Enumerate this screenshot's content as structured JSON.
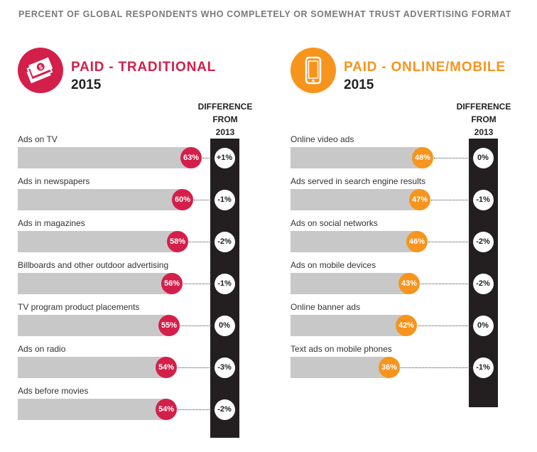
{
  "title": "PERCENT OF GLOBAL RESPONDENTS WHO COMPLETELY OR SOMEWHAT TRUST ADVERTISING FORMAT",
  "difference_header": [
    "DIFFERENCE",
    "FROM",
    "2013"
  ],
  "colors": {
    "traditional": "#d41f4a",
    "online": "#f7941d",
    "bar": "#c8c8c8",
    "diff_column": "#231f20"
  },
  "chart_data": [
    {
      "type": "bar",
      "orientation": "horizontal",
      "title": "PAID - TRADITIONAL",
      "year": "2015",
      "icon": "money-icon",
      "categories": [
        "Ads on TV",
        "Ads in newspapers",
        "Ads in magazines",
        "Billboards and other outdoor advertising",
        "TV program product placements",
        "Ads on radio",
        "Ads before movies"
      ],
      "values": [
        63,
        60,
        58,
        56,
        55,
        54,
        54
      ],
      "value_labels": [
        "63%",
        "60%",
        "58%",
        "56%",
        "55%",
        "54%",
        "54%"
      ],
      "difference_from_2013": [
        "+1%",
        "-1%",
        "-2%",
        "-1%",
        "0%",
        "-3%",
        "-2%"
      ],
      "xlim": [
        0,
        100
      ]
    },
    {
      "type": "bar",
      "orientation": "horizontal",
      "title": "PAID - ONLINE/MOBILE",
      "year": "2015",
      "icon": "mobile-phone-icon",
      "categories": [
        "Online video ads",
        "Ads served in search engine results",
        "Ads on social networks",
        "Ads on mobile devices",
        "Online banner ads",
        "Text ads on mobile phones"
      ],
      "values": [
        48,
        47,
        46,
        43,
        42,
        36
      ],
      "value_labels": [
        "48%",
        "47%",
        "46%",
        "43%",
        "42%",
        "36%"
      ],
      "difference_from_2013": [
        "0%",
        "-1%",
        "-2%",
        "-2%",
        "0%",
        "-1%"
      ],
      "xlim": [
        0,
        100
      ]
    }
  ]
}
